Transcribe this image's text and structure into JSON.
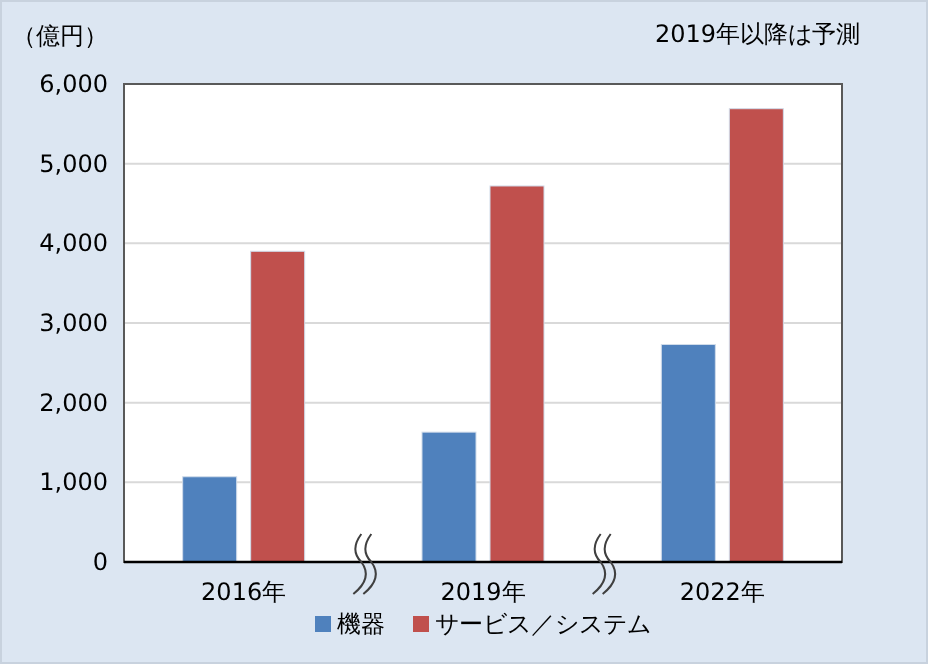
{
  "chart_data": {
    "type": "bar",
    "ylabel": "（億円）",
    "annotations": [
      "2019年以降は予測"
    ],
    "categories": [
      "2016年",
      "2019年",
      "2022年"
    ],
    "series": [
      {
        "name": "機器",
        "color": "#4f81bd",
        "values": [
          1070,
          1630,
          2730
        ]
      },
      {
        "name": "サービス／システム",
        "color": "#c0504d",
        "values": [
          3900,
          4720,
          5690
        ]
      }
    ],
    "ylim": [
      0,
      6000
    ],
    "yticks": [
      {
        "value": 0,
        "label": "0"
      },
      {
        "value": 1000,
        "label": "1,000"
      },
      {
        "value": 2000,
        "label": "2,000"
      },
      {
        "value": 3000,
        "label": "3,000"
      },
      {
        "value": 4000,
        "label": "4,000"
      },
      {
        "value": 5000,
        "label": "5,000"
      },
      {
        "value": 6000,
        "label": "6,000"
      }
    ],
    "grid": "y",
    "legend": "bottom"
  }
}
